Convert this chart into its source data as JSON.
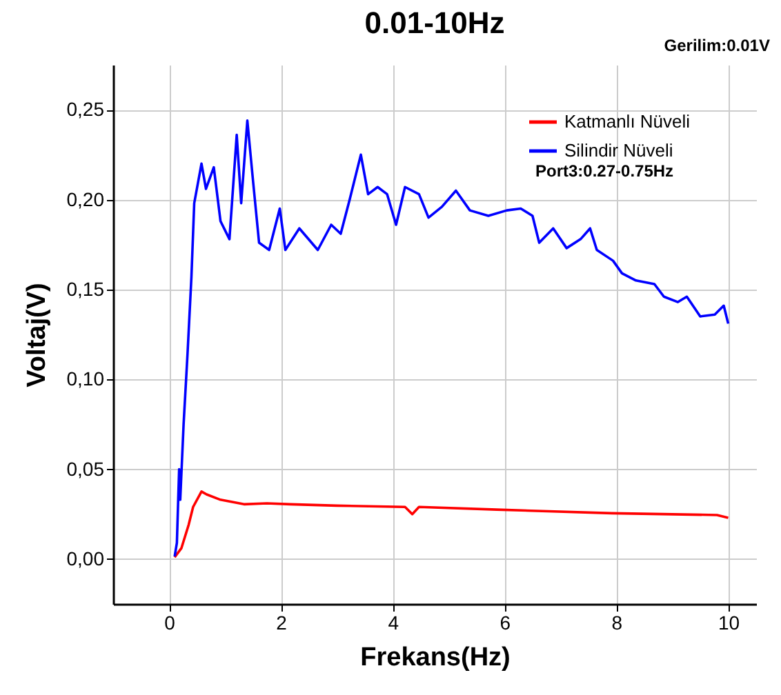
{
  "chart_data": {
    "type": "line",
    "title": "0.01-10Hz",
    "subtitle": "Gerilim:0.01V",
    "xlabel": "Frekans(Hz)",
    "ylabel": "Voltaj(V)",
    "annotations": [
      "Port3:0.27-0.75Hz"
    ],
    "xlim": [
      -1,
      10.5
    ],
    "xticks": [
      0,
      2,
      4,
      6,
      8,
      10
    ],
    "ylim": [
      -0.025,
      0.275
    ],
    "yticks": [
      {
        "value": 0,
        "label": "0,00"
      },
      {
        "value": 0.05,
        "label": "0,05"
      },
      {
        "value": 0.1,
        "label": "0,10"
      },
      {
        "value": 0.15,
        "label": "0,15"
      },
      {
        "value": 0.2,
        "label": "0,20"
      },
      {
        "value": 0.25,
        "label": "0,25"
      }
    ],
    "grid": true,
    "legend": "top right",
    "series": [
      {
        "name": "Katmanlı Nüveli",
        "color": "#ff0000",
        "x": [
          0.1,
          0.22,
          0.35,
          0.43,
          0.58,
          0.67,
          0.92,
          1.34,
          1.75,
          2.17,
          3.0,
          4.22,
          4.35,
          4.47,
          5.86,
          7.92,
          9.8,
          10.0
        ],
        "values": [
          0.001,
          0.006,
          0.019,
          0.029,
          0.0376,
          0.036,
          0.033,
          0.0305,
          0.031,
          0.0305,
          0.0297,
          0.029,
          0.025,
          0.029,
          0.0275,
          0.0255,
          0.0245,
          0.023
        ]
      },
      {
        "name": "Silindir Nüveli",
        "color": "#0000ff",
        "x": [
          0.1,
          0.14,
          0.18,
          0.2,
          0.26,
          0.33,
          0.4,
          0.45,
          0.58,
          0.66,
          0.8,
          0.92,
          1.08,
          1.21,
          1.29,
          1.4,
          1.5,
          1.61,
          1.79,
          1.98,
          2.08,
          2.33,
          2.66,
          2.9,
          3.07,
          3.23,
          3.43,
          3.56,
          3.73,
          3.9,
          4.06,
          4.22,
          4.47,
          4.64,
          4.88,
          5.13,
          5.38,
          5.71,
          6.04,
          6.29,
          6.5,
          6.62,
          6.87,
          7.11,
          7.36,
          7.53,
          7.65,
          7.94,
          8.1,
          8.35,
          8.68,
          8.85,
          9.1,
          9.26,
          9.5,
          9.76,
          9.92,
          10.0
        ],
        "values": [
          0.0015,
          0.009,
          0.05,
          0.033,
          0.075,
          0.114,
          0.157,
          0.198,
          0.22,
          0.206,
          0.218,
          0.188,
          0.178,
          0.236,
          0.198,
          0.244,
          0.211,
          0.176,
          0.172,
          0.195,
          0.172,
          0.184,
          0.172,
          0.186,
          0.181,
          0.2,
          0.225,
          0.203,
          0.207,
          0.203,
          0.186,
          0.207,
          0.203,
          0.19,
          0.196,
          0.205,
          0.194,
          0.191,
          0.194,
          0.195,
          0.191,
          0.176,
          0.184,
          0.173,
          0.178,
          0.184,
          0.172,
          0.166,
          0.159,
          0.155,
          0.153,
          0.146,
          0.143,
          0.146,
          0.135,
          0.136,
          0.141,
          0.131
        ]
      }
    ]
  }
}
